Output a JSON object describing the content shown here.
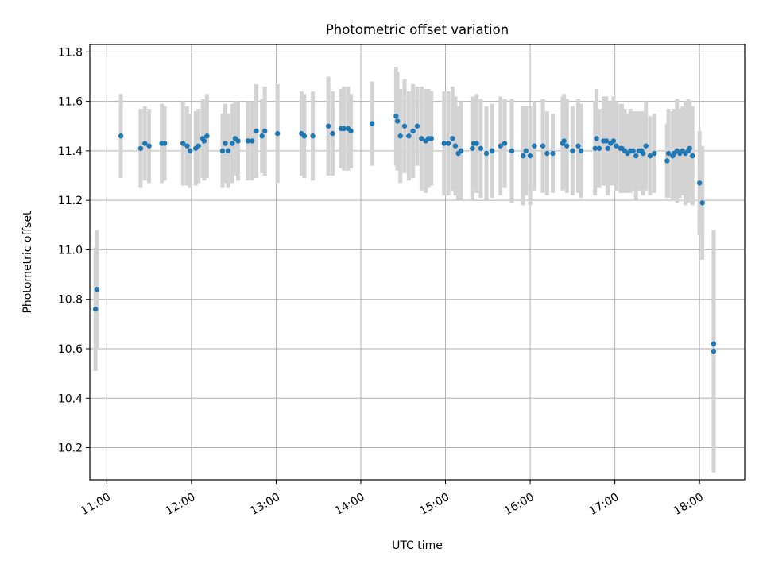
{
  "chart_data": {
    "type": "scatter",
    "title": "Photometric offset variation",
    "xlabel": "UTC time",
    "ylabel": "Photometric offset",
    "x_ticks": [
      "11:00",
      "12:00",
      "13:00",
      "14:00",
      "15:00",
      "16:00",
      "17:00",
      "18:00"
    ],
    "y_ticks": [
      "10.2",
      "10.4",
      "10.6",
      "10.8",
      "11.0",
      "11.2",
      "11.4",
      "11.6",
      "11.8"
    ],
    "xlim": [
      "10:48",
      "18:32"
    ],
    "ylim": [
      10.07,
      11.83
    ],
    "grid": true,
    "marker_color": "#1f77b4",
    "errorbar_color": "#d3d3d3",
    "x_unit": "HH:MM",
    "series": [
      {
        "x": [
          "10:52",
          "10:53",
          "11:10",
          "11:24",
          "11:27",
          "11:30",
          "11:39",
          "11:41",
          "11:54",
          "11:57",
          "11:59",
          "12:03",
          "12:05",
          "12:08",
          "12:09",
          "12:11",
          "12:22",
          "12:24",
          "12:26",
          "12:29",
          "12:31",
          "12:33",
          "12:40",
          "12:43",
          "12:46",
          "12:50",
          "12:52",
          "13:01",
          "13:18",
          "13:20",
          "13:26",
          "13:37",
          "13:40",
          "13:46",
          "13:48",
          "13:51",
          "13:53",
          "14:08",
          "14:25",
          "14:26",
          "14:28",
          "14:31",
          "14:34",
          "14:37",
          "14:40",
          "14:43",
          "14:46",
          "14:48",
          "14:50",
          "14:59",
          "15:02",
          "15:05",
          "15:07",
          "15:09",
          "15:11",
          "15:19",
          "15:20",
          "15:22",
          "15:25",
          "15:29",
          "15:33",
          "15:39",
          "15:42",
          "15:47",
          "15:55",
          "15:57",
          "16:00",
          "16:03",
          "16:09",
          "16:12",
          "16:16",
          "16:23",
          "16:24",
          "16:26",
          "16:30",
          "16:34",
          "16:36",
          "16:46",
          "16:47",
          "16:49",
          "16:52",
          "16:54",
          "16:55",
          "16:57",
          "16:59",
          "17:01",
          "17:04",
          "17:05",
          "17:07",
          "17:09",
          "17:11",
          "17:13",
          "17:15",
          "17:17",
          "17:19",
          "17:20",
          "17:22",
          "17:25",
          "17:28",
          "17:37",
          "17:38",
          "17:41",
          "17:42",
          "17:44",
          "17:46",
          "17:48",
          "17:50",
          "17:52",
          "17:53",
          "17:55",
          "18:00",
          "18:02",
          "18:10",
          "18:10"
        ],
        "y": [
          10.76,
          10.84,
          11.46,
          11.41,
          11.43,
          11.42,
          11.43,
          11.43,
          11.43,
          11.42,
          11.4,
          11.41,
          11.42,
          11.45,
          11.44,
          11.46,
          11.4,
          11.43,
          11.4,
          11.43,
          11.45,
          11.44,
          11.44,
          11.44,
          11.48,
          11.46,
          11.48,
          11.47,
          11.47,
          11.46,
          11.46,
          11.5,
          11.47,
          11.49,
          11.49,
          11.49,
          11.48,
          11.51,
          11.54,
          11.52,
          11.46,
          11.5,
          11.46,
          11.48,
          11.5,
          11.45,
          11.44,
          11.45,
          11.45,
          11.43,
          11.43,
          11.45,
          11.42,
          11.39,
          11.4,
          11.41,
          11.43,
          11.43,
          11.41,
          11.39,
          11.4,
          11.42,
          11.43,
          11.4,
          11.38,
          11.4,
          11.38,
          11.42,
          11.42,
          11.39,
          11.39,
          11.43,
          11.44,
          11.42,
          11.4,
          11.42,
          11.4,
          11.41,
          11.45,
          11.41,
          11.44,
          11.44,
          11.41,
          11.43,
          11.44,
          11.42,
          11.41,
          11.41,
          11.4,
          11.39,
          11.4,
          11.4,
          11.38,
          11.4,
          11.4,
          11.39,
          11.42,
          11.38,
          11.39,
          11.36,
          11.39,
          11.38,
          11.39,
          11.4,
          11.39,
          11.4,
          11.39,
          11.4,
          11.41,
          11.38,
          11.27,
          11.19,
          10.62,
          10.59
        ],
        "err": [
          0.25,
          0.24,
          0.17,
          0.16,
          0.15,
          0.15,
          0.16,
          0.15,
          0.17,
          0.16,
          0.15,
          0.15,
          0.15,
          0.16,
          0.16,
          0.17,
          0.15,
          0.16,
          0.15,
          0.16,
          0.15,
          0.16,
          0.16,
          0.16,
          0.19,
          0.15,
          0.18,
          0.2,
          0.17,
          0.17,
          0.18,
          0.2,
          0.17,
          0.16,
          0.17,
          0.17,
          0.15,
          0.17,
          0.2,
          0.2,
          0.19,
          0.19,
          0.18,
          0.19,
          0.16,
          0.21,
          0.21,
          0.2,
          0.19,
          0.21,
          0.21,
          0.21,
          0.2,
          0.19,
          0.2,
          0.21,
          0.18,
          0.2,
          0.2,
          0.19,
          0.19,
          0.2,
          0.18,
          0.21,
          0.2,
          0.18,
          0.2,
          0.18,
          0.19,
          0.17,
          0.16,
          0.19,
          0.19,
          0.19,
          0.18,
          0.19,
          0.19,
          0.19,
          0.2,
          0.16,
          0.18,
          0.18,
          0.19,
          0.17,
          0.18,
          0.18,
          0.18,
          0.18,
          0.17,
          0.16,
          0.17,
          0.16,
          0.18,
          0.16,
          0.16,
          0.17,
          0.18,
          0.16,
          0.16,
          0.15,
          0.18,
          0.18,
          0.18,
          0.21,
          0.18,
          0.18,
          0.21,
          0.21,
          0.19,
          0.2,
          0.21,
          0.23,
          0.46,
          0.49
        ]
      }
    ]
  }
}
